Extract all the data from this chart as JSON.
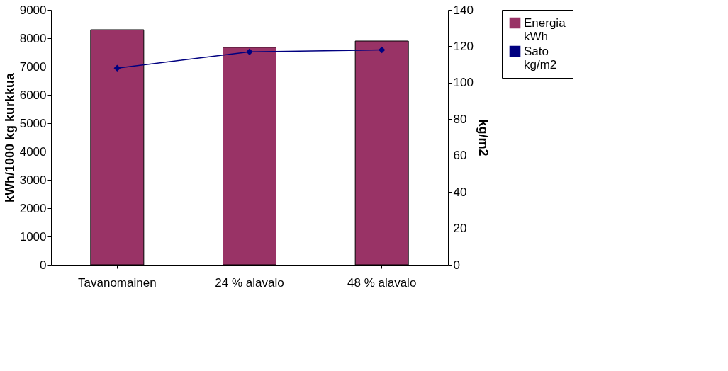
{
  "chart_data": {
    "type": "bar",
    "ylabel": "kWh/1000 kg kurkkua",
    "y2label": "kg/m2",
    "categories": [
      "Tavanomainen",
      "24 % alavalo",
      "48 % alavalo"
    ],
    "series": [
      {
        "name": "Energia kWh",
        "color": "#993366",
        "values": [
          8300,
          7680,
          7900
        ]
      },
      {
        "name": "Sato kg/m2",
        "type": "line",
        "axis": "y2",
        "color": "#000080",
        "marker": "diamond",
        "values": [
          108,
          117,
          118
        ]
      }
    ],
    "ylim": [
      0,
      9000
    ],
    "yticks": [
      0,
      1000,
      2000,
      3000,
      4000,
      5000,
      6000,
      7000,
      8000,
      9000
    ],
    "y2lim": [
      0,
      140
    ],
    "y2ticks": [
      0,
      20,
      40,
      60,
      80,
      100,
      120,
      140
    ],
    "grid": false,
    "legend": "right"
  }
}
